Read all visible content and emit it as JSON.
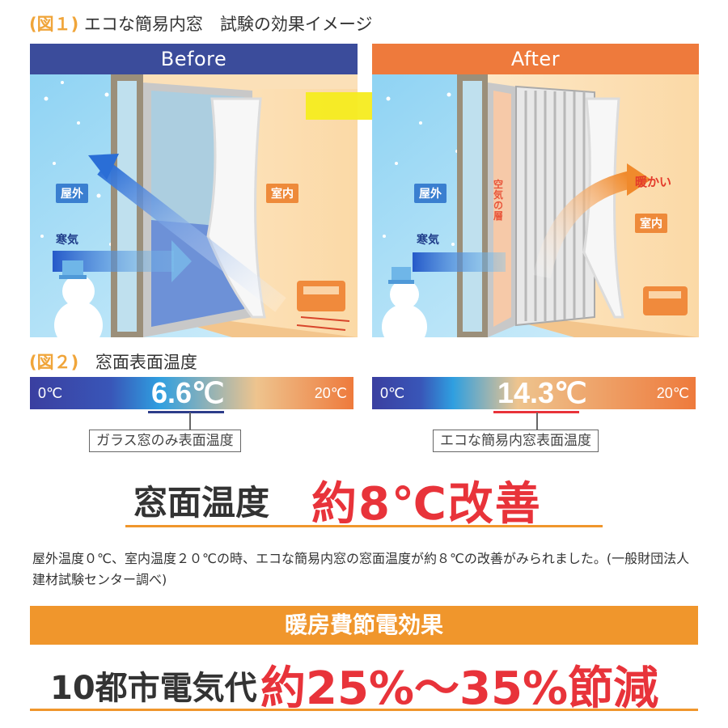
{
  "fig1": {
    "tag": "(図１)",
    "title": "エコな簡易内窓　試験の効果イメージ"
  },
  "before": {
    "header": "Before",
    "outdoor_label": "屋外",
    "indoor_label": "室内",
    "cold_air_label": "寒気"
  },
  "after": {
    "header": "After",
    "outdoor_label": "屋外",
    "indoor_label": "室内",
    "cold_air_label": "寒気",
    "warm_label": "暖かい",
    "air_layer_label": "空気の層"
  },
  "fig2": {
    "tag": "(図２)",
    "title": "窓面表面温度"
  },
  "bar_before": {
    "min": "0℃",
    "max": "20℃",
    "value": "6.6℃",
    "caption": "ガラス窓のみ表面温度"
  },
  "bar_after": {
    "min": "0℃",
    "max": "20℃",
    "value": "14.3℃",
    "caption": "エコな簡易内窓表面温度"
  },
  "result": {
    "label": "窓面温度",
    "value": "約8℃改善"
  },
  "note": "屋外温度０℃、室内温度２０℃の時、エコな簡易内窓の窓面温度が約８℃の改善がみられました。(一般財団法人建材試験センター調べ)",
  "banner": "暖房費節電効果",
  "saving": {
    "label": "10都市電気代",
    "value": "約25%～35%節減"
  },
  "colors": {
    "accent_orange": "#f0962c",
    "red": "#e8333a",
    "navy": "#3b4c9b",
    "after_orange": "#ee7a3c"
  }
}
